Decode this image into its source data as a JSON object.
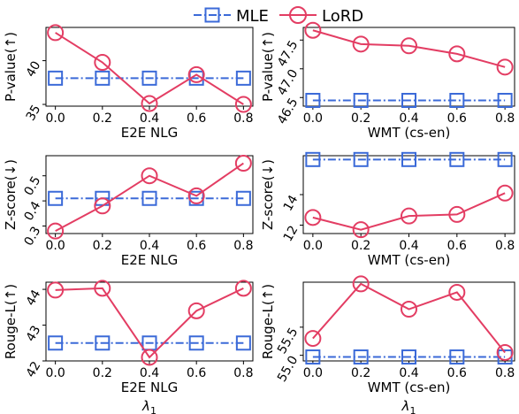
{
  "legend": {
    "position": "top-center",
    "entries": [
      "MLE",
      "LoRD"
    ]
  },
  "colors": {
    "MLE": "#3b6ad8",
    "LoRD": "#e33d63"
  },
  "chart_data": [
    {
      "type": "line",
      "panel": "top-left",
      "x": [
        0.0,
        0.2,
        0.4,
        0.6,
        0.8
      ],
      "xticks": [
        "0.0",
        "0.2",
        "0.4",
        "0.6",
        "0.8"
      ],
      "xlabel": "E2E NLG",
      "ylabel": "P-value(↑)",
      "ylim": [
        34.8,
        43.8
      ],
      "yticks": [
        35,
        40
      ],
      "ytick_labels": [
        "35",
        "40"
      ],
      "ytick_rotation": 60,
      "series": [
        {
          "name": "MLE",
          "values": [
            38.0,
            38.0,
            38.0,
            38.0,
            38.0
          ]
        },
        {
          "name": "LoRD",
          "values": [
            43.2,
            39.8,
            35.1,
            38.4,
            35.0
          ]
        }
      ]
    },
    {
      "type": "line",
      "panel": "top-right",
      "x": [
        0.0,
        0.2,
        0.4,
        0.6,
        0.8
      ],
      "xticks": [
        "0.0",
        "0.2",
        "0.4",
        "0.6",
        "0.8"
      ],
      "xlabel": "WMT (cs-en)",
      "ylabel": "P-value(↑)",
      "ylim": [
        46.35,
        47.72
      ],
      "yticks": [
        46.5,
        47.0,
        47.5
      ],
      "ytick_labels": [
        "46.5",
        "47.0",
        "47.5"
      ],
      "ytick_rotation": 60,
      "series": [
        {
          "name": "MLE",
          "values": [
            46.45,
            46.45,
            46.45,
            46.45,
            46.45
          ]
        },
        {
          "name": "LoRD",
          "values": [
            47.67,
            47.43,
            47.4,
            47.26,
            47.03
          ]
        }
      ]
    },
    {
      "type": "line",
      "panel": "middle-left",
      "x": [
        0.0,
        0.2,
        0.4,
        0.6,
        0.8
      ],
      "xticks": [
        "0.0",
        "0.2",
        "0.4",
        "0.6",
        "0.8"
      ],
      "xlabel": "E2E NLG",
      "ylabel": "Z-score(↓)",
      "ylim": [
        0.27,
        0.58
      ],
      "yticks": [
        0.3,
        0.4,
        0.5
      ],
      "ytick_labels": [
        "0.3",
        "0.4",
        "0.5"
      ],
      "ytick_rotation": 60,
      "series": [
        {
          "name": "MLE",
          "values": [
            0.41,
            0.41,
            0.41,
            0.41,
            0.41
          ]
        },
        {
          "name": "LoRD",
          "values": [
            0.28,
            0.38,
            0.5,
            0.42,
            0.55
          ]
        }
      ]
    },
    {
      "type": "line",
      "panel": "middle-right",
      "x": [
        0.0,
        0.2,
        0.4,
        0.6,
        0.8
      ],
      "xticks": [
        "0.0",
        "0.2",
        "0.4",
        "0.6",
        "0.8"
      ],
      "xlabel": "WMT (cs-en)",
      "ylabel": "Z-score(↓)",
      "ylim": [
        11.45,
        16.55
      ],
      "yticks": [
        12,
        14
      ],
      "ytick_labels": [
        "12",
        "14"
      ],
      "ytick_rotation": 60,
      "series": [
        {
          "name": "MLE",
          "values": [
            16.3,
            16.3,
            16.3,
            16.3,
            16.3
          ]
        },
        {
          "name": "LoRD",
          "values": [
            12.5,
            11.7,
            12.6,
            12.7,
            14.1
          ]
        }
      ]
    },
    {
      "type": "line",
      "panel": "bottom-left",
      "x": [
        0.0,
        0.2,
        0.4,
        0.6,
        0.8
      ],
      "xticks": [
        "0.0",
        "0.2",
        "0.4",
        "0.6",
        "0.8"
      ],
      "xlabel": "E2E NLG",
      "ylabel": "Rouge-L(↑)",
      "xaxis_title": "λ1",
      "ylim": [
        42.0,
        44.2
      ],
      "yticks": [
        42,
        43,
        44
      ],
      "ytick_labels": [
        "42",
        "43",
        "44"
      ],
      "ytick_rotation": 60,
      "series": [
        {
          "name": "MLE",
          "values": [
            42.5,
            42.5,
            42.5,
            42.5,
            42.5
          ]
        },
        {
          "name": "LoRD",
          "values": [
            43.98,
            44.03,
            42.1,
            43.4,
            44.03
          ]
        }
      ]
    },
    {
      "type": "line",
      "panel": "bottom-right",
      "x": [
        0.0,
        0.2,
        0.4,
        0.6,
        0.8
      ],
      "xticks": [
        "0.0",
        "0.2",
        "0.4",
        "0.6",
        "0.8"
      ],
      "xlabel": "WMT (cs-en)",
      "ylabel": "Rouge-L(↑)",
      "xaxis_title": "λ1",
      "ylim": [
        54.9,
        56.3
      ],
      "yticks": [
        55.0,
        55.5
      ],
      "ytick_labels": [
        "55.0",
        "55.5"
      ],
      "ytick_rotation": 60,
      "series": [
        {
          "name": "MLE",
          "values": [
            54.97,
            54.97,
            54.97,
            54.97,
            54.97
          ]
        },
        {
          "name": "LoRD",
          "values": [
            55.3,
            56.27,
            55.82,
            56.12,
            55.05
          ]
        }
      ]
    }
  ]
}
